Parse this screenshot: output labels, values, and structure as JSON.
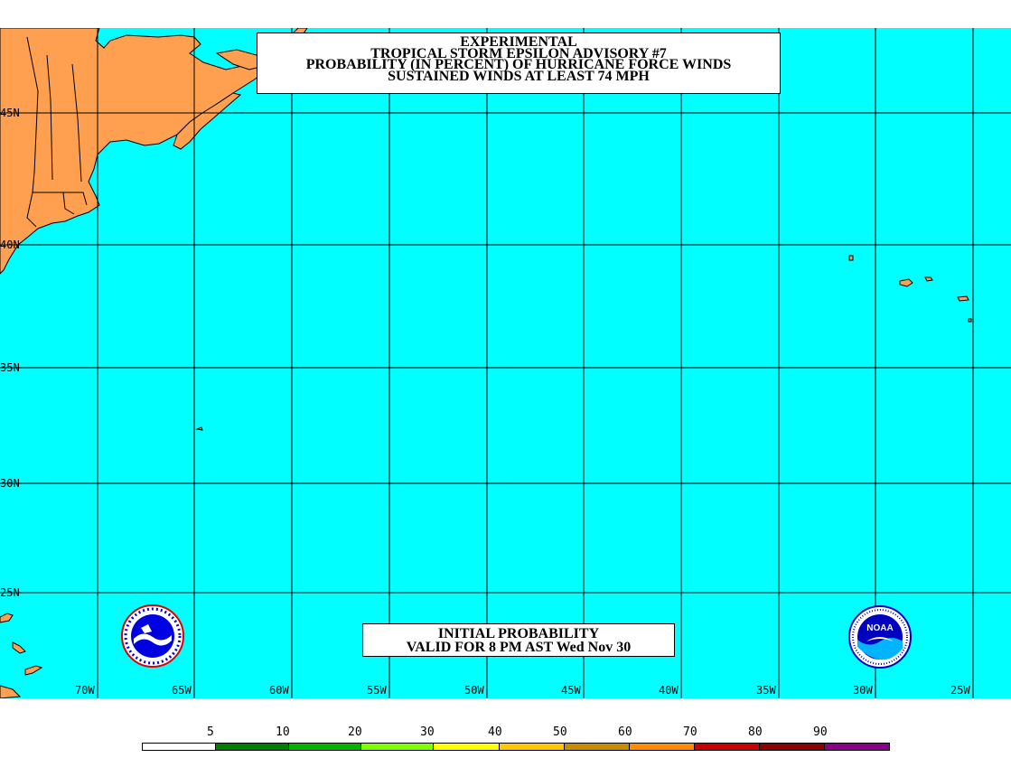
{
  "title": {
    "lines": [
      "EXPERIMENTAL",
      "TROPICAL STORM EPSILON ADVISORY #7",
      "PROBABILITY (IN PERCENT) OF HURRICANE FORCE WINDS",
      "SUSTAINED WINDS AT LEAST 74 MPH"
    ]
  },
  "valid": {
    "line1": "INITIAL PROBABILITY",
    "line2": "VALID FOR 8 PM AST Wed Nov 30"
  },
  "lat_labels": [
    "45N",
    "40N",
    "35N",
    "30N",
    "25N"
  ],
  "lon_labels": [
    "70W",
    "65W",
    "60W",
    "55W",
    "50W",
    "45W",
    "40W",
    "35W",
    "30W",
    "25W"
  ],
  "legend": {
    "labels": [
      "5",
      "10",
      "20",
      "30",
      "40",
      "50",
      "60",
      "70",
      "80",
      "90"
    ],
    "colors": [
      "#ffffff",
      "#008000",
      "#00b400",
      "#7fff00",
      "#ffff00",
      "#ffc800",
      "#c88c00",
      "#ff8c00",
      "#c80000",
      "#8b0000",
      "#8b008b"
    ]
  },
  "colors": {
    "ocean": "#00ffff",
    "land": "#ffa050",
    "grid": "#000000"
  },
  "logos": {
    "left": "nws-logo",
    "right": "noaa-logo",
    "noaa_text": "NOAA"
  }
}
